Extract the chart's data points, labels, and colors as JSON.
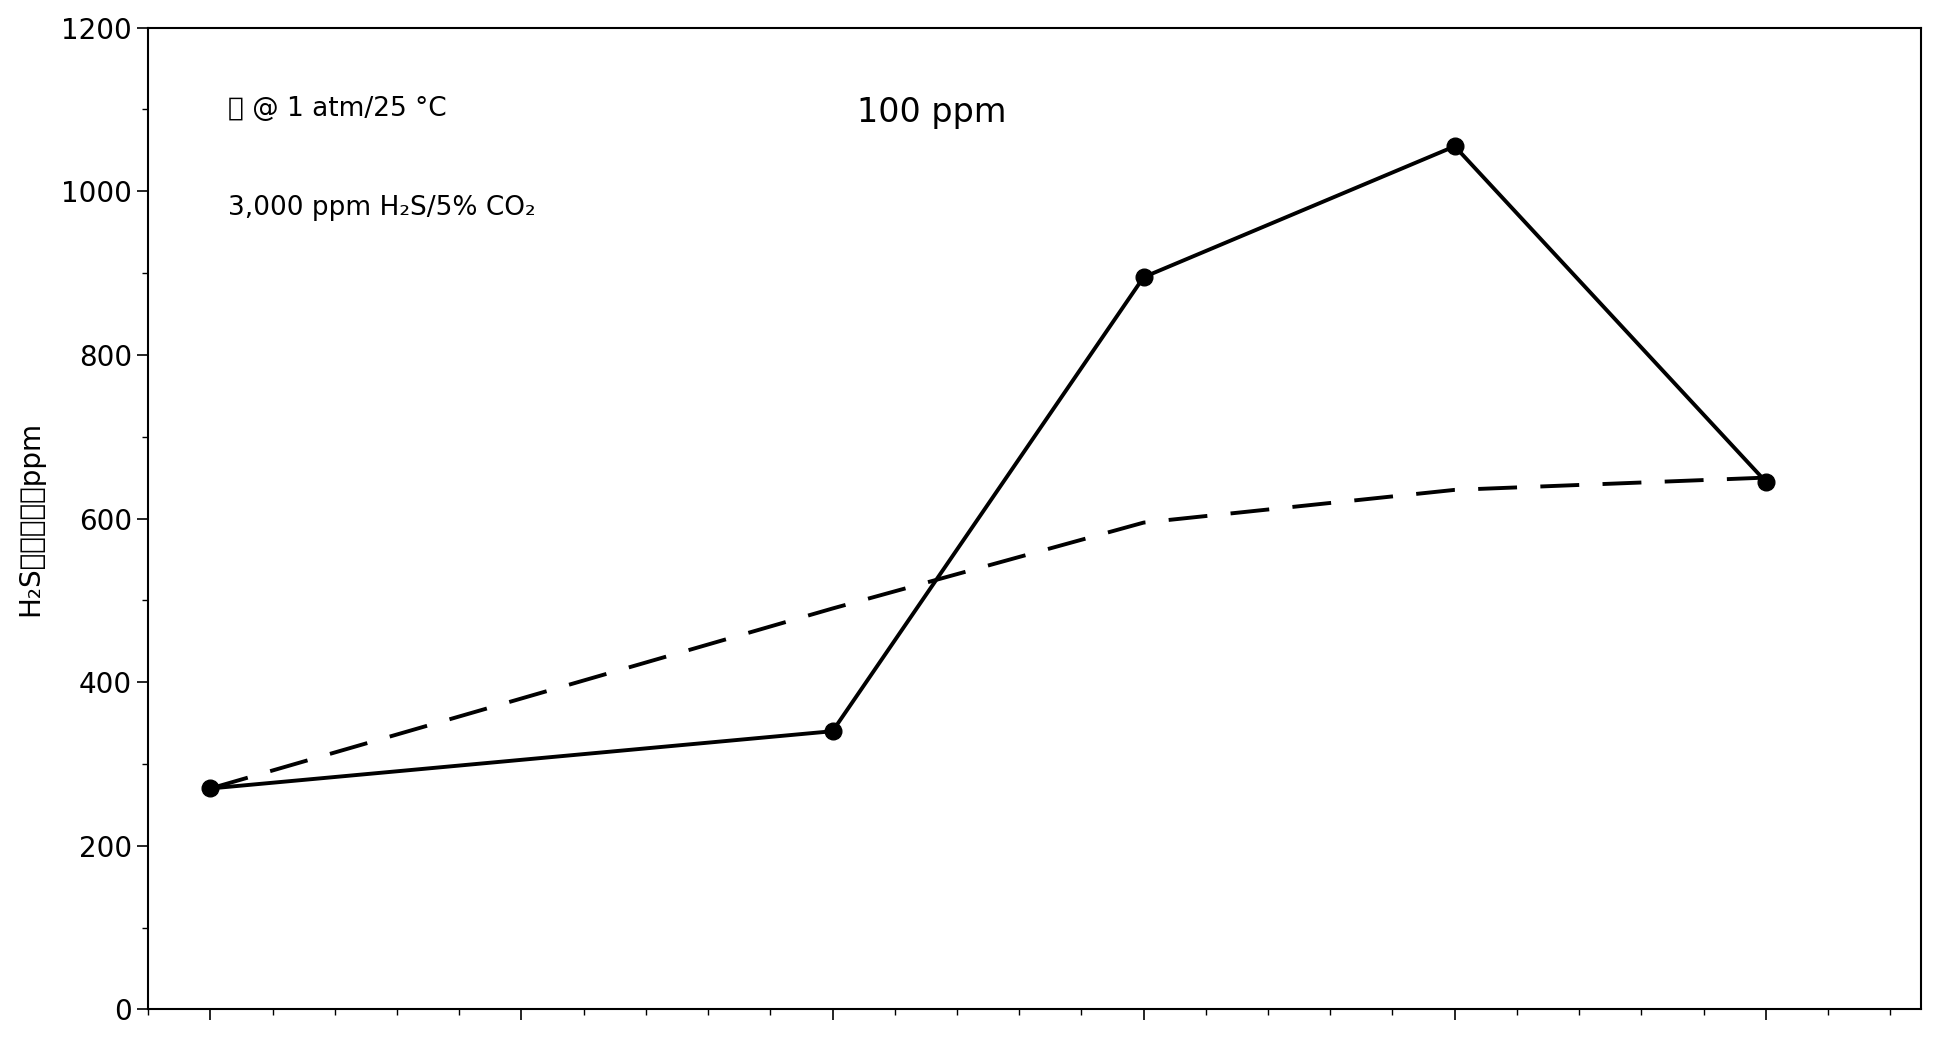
{
  "solid_x": [
    0,
    2,
    3,
    4,
    5
  ],
  "solid_y": [
    270,
    340,
    895,
    1055,
    645
  ],
  "dashed_x": [
    0,
    2,
    3,
    4,
    5
  ],
  "dashed_y": [
    270,
    490,
    595,
    635,
    650
  ],
  "ylim": [
    0,
    1200
  ],
  "xlim": [
    -0.2,
    5.5
  ],
  "yticks": [
    0,
    200,
    400,
    600,
    800,
    1000,
    1200
  ],
  "ylabel": "H₂S最大清除，ppm",
  "annotation_line1": "油 @ 1 atm/25 °C",
  "annotation_line2": "3,000 ppm H₂S/5% CO₂",
  "annotation_ppm": "100 ppm",
  "background_color": "#ffffff",
  "line_color": "#000000",
  "font_size": 20,
  "tick_font_size": 20,
  "annotation_font_size": 19,
  "ppm_font_size": 24
}
